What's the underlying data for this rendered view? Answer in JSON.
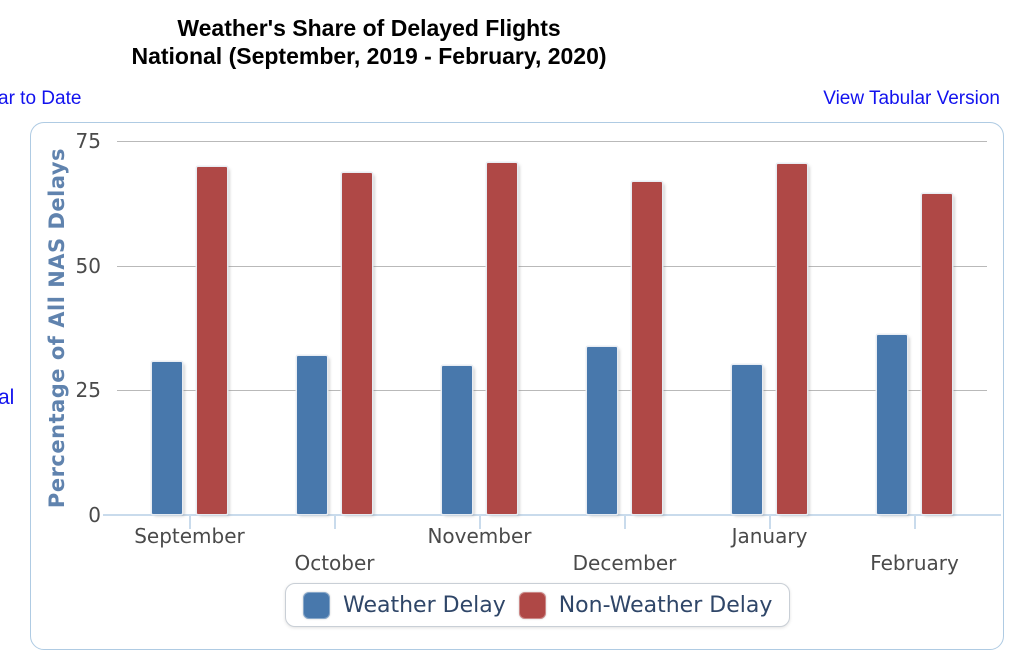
{
  "title": {
    "line1": "Weather's Share of Delayed Flights",
    "line2": "National (September, 2019 - February, 2020)"
  },
  "links": {
    "year_to_date": "ar to Date",
    "view_tabular": "View Tabular Version",
    "left_fragment": "al"
  },
  "chart_data": {
    "type": "bar",
    "title": "Weather's Share of Delayed Flights",
    "subtitle": "National (September, 2019 - February, 2020)",
    "categories": [
      "September",
      "October",
      "November",
      "December",
      "January",
      "February"
    ],
    "series": [
      {
        "name": "Weather Delay",
        "color": "#4878AC",
        "values": [
          30.5,
          31.6,
          29.6,
          33.4,
          29.9,
          35.9
        ]
      },
      {
        "name": "Non-Weather Delay",
        "color": "#AF4846",
        "values": [
          69.5,
          68.4,
          70.4,
          66.6,
          70.1,
          64.1
        ]
      }
    ],
    "xlabel": "",
    "ylabel": "Percentage of All NAS Delays",
    "ylim": [
      0,
      75
    ],
    "yticks": [
      0,
      25,
      50,
      75
    ],
    "grid": true,
    "legend_position": "bottom"
  },
  "colors": {
    "link": "#1212EE",
    "axis_label": "#6083AE",
    "tick_text": "#4A4A4A",
    "gridline": "#B9B9B9",
    "axis_line": "#C9DBEC",
    "panel_border": "#AFCBE3",
    "legend_text": "#2F4668"
  }
}
